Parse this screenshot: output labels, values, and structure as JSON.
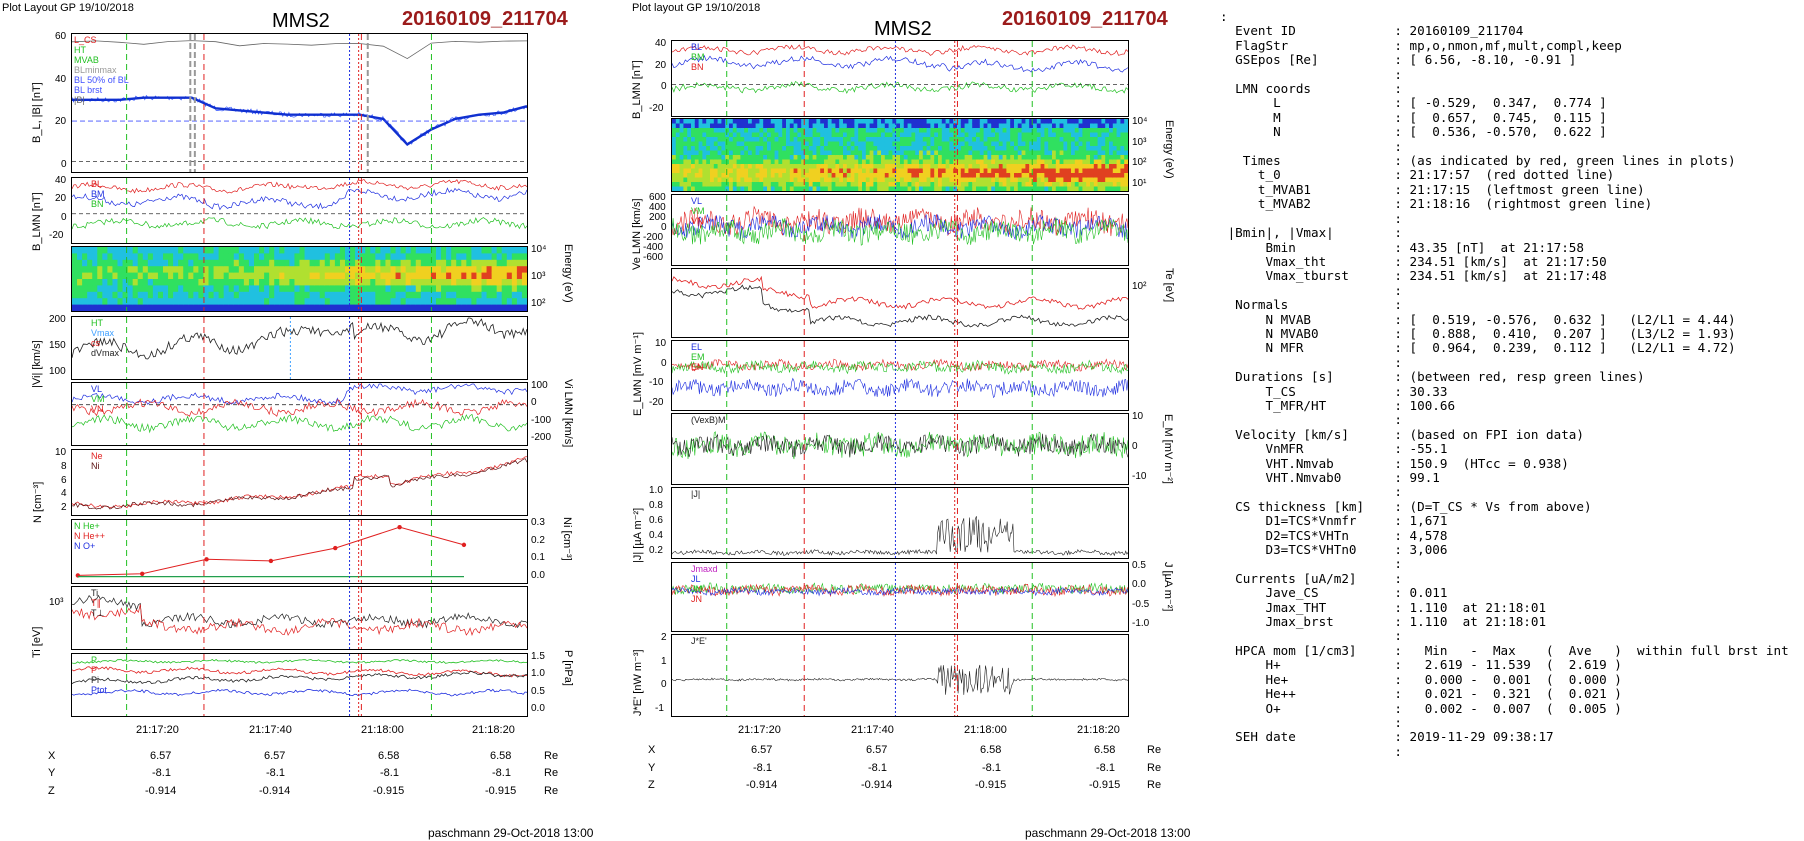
{
  "left": {
    "layout_label": "Plot Layout GP 19/10/2018",
    "spacecraft": "MMS2",
    "event_label": "20160109_211704",
    "footer": "paschmann 29-Oct-2018 13:00",
    "time_ticks": [
      "21:17:20",
      "21:17:40",
      "21:18:00",
      "21:18:20"
    ],
    "coords": {
      "X": [
        "6.57",
        "6.57",
        "6.58",
        "6.58"
      ],
      "Y": [
        "-8.1",
        "-8.1",
        "-8.1",
        "-8.1"
      ],
      "Z": [
        "-0.914",
        "-0.914",
        "-0.915",
        "-0.915"
      ],
      "unit": "Re"
    },
    "panels": {
      "b": {
        "ylabel": "B_L, |B| [nT]",
        "ticks": [
          "60",
          "40",
          "20",
          "0"
        ],
        "legend": [
          "L_CS",
          "HT",
          "MVAB",
          "BLminmax",
          "BL 50% of BL",
          "BL brst",
          "|B|"
        ]
      },
      "blmn": {
        "ylabel": "B_LMN [nT]",
        "ticks": [
          "40",
          "20",
          "0",
          "-20"
        ],
        "legend": [
          "BL",
          "BM",
          "BN"
        ]
      },
      "energy": {
        "ylabel": "Energy (eV)",
        "ticks": [
          "10⁴",
          "10³",
          "10²"
        ]
      },
      "vi": {
        "ylabel": "|Vi| [km/s]",
        "ticks": [
          "200",
          "150",
          "100"
        ],
        "legend": [
          "HT",
          "Vmax",
          "cs",
          "dVmax"
        ]
      },
      "vilmn": {
        "ylabel": "Vi LMN [km/s]",
        "ticks": [
          "100",
          "0",
          "-100",
          "-200"
        ],
        "legend": [
          "VL",
          "VM",
          "VN"
        ]
      },
      "n": {
        "ylabel": "N [cm⁻³]",
        "ticks": [
          "10",
          "8",
          "6",
          "4",
          "2"
        ],
        "legend": [
          "Ne",
          "Ni"
        ]
      },
      "ni": {
        "ylabel": "Ni [cm⁻³]",
        "ticks": [
          "0.3",
          "0.2",
          "0.1",
          "0.0"
        ],
        "legend": [
          "N He+",
          "N He++",
          "N O+"
        ]
      },
      "ti": {
        "ylabel": "Ti [eV]",
        "ticks": [
          "10³"
        ],
        "legend": [
          "Ti",
          "T∥",
          "T⊥"
        ]
      },
      "p": {
        "ylabel": "P [nPa]",
        "ticks": [
          "1.5",
          "1.0",
          "0.5",
          "0.0"
        ],
        "legend": [
          "P",
          "P",
          "Pi",
          "Ptot"
        ]
      }
    }
  },
  "middle": {
    "layout_label": "Plot layout GP 19/10/2018",
    "spacecraft": "MMS2",
    "event_label": "20160109_211704",
    "footer": "paschmann 29-Oct-2018 13:00",
    "time_ticks": [
      "21:17:20",
      "21:17:40",
      "21:18:00",
      "21:18:20"
    ],
    "coords": {
      "X": [
        "6.57",
        "6.57",
        "6.58",
        "6.58"
      ],
      "Y": [
        "-8.1",
        "-8.1",
        "-8.1",
        "-8.1"
      ],
      "Z": [
        "-0.914",
        "-0.914",
        "-0.915",
        "-0.915"
      ],
      "unit": "Re"
    },
    "panels": {
      "blmn": {
        "ylabel": "B_LMN [nT]",
        "ticks": [
          "40",
          "20",
          "0",
          "-20"
        ],
        "legend": [
          "BL",
          "BM",
          "BN"
        ]
      },
      "energy": {
        "ylabel": "Energy (eV)",
        "ticks": [
          "10⁴",
          "10³",
          "10²",
          "10¹"
        ]
      },
      "ve": {
        "ylabel": "Ve LMN [km/s]",
        "ticks": [
          "600",
          "400",
          "200",
          "0",
          "-200",
          "-400",
          "-600"
        ],
        "legend": [
          "VL",
          "VM",
          "VN"
        ]
      },
      "te": {
        "ylabel": "Te [eV]",
        "ticks": [
          "10²"
        ]
      },
      "e": {
        "ylabel": "E_LMN [mV m⁻¹]",
        "ticks": [
          "10",
          "0",
          "-10",
          "-20"
        ],
        "legend": [
          "EL",
          "EM",
          "EN"
        ]
      },
      "em": {
        "ylabel": "E_M [mV m⁻²]",
        "ticks": [
          "10",
          "0",
          "-10"
        ],
        "legend": [
          "(VexB)M"
        ]
      },
      "j": {
        "ylabel": "|J| [µA m⁻²]",
        "ticks": [
          "1.0",
          "0.8",
          "0.6",
          "0.4",
          "0.2"
        ],
        "legend": [
          "|J|"
        ]
      },
      "jlmn": {
        "ylabel": "J [µA m⁻²]",
        "ticks": [
          "0.5",
          "0.0",
          "-0.5",
          "-1.0"
        ],
        "legend": [
          "Jmaxd",
          "JL",
          "JM",
          "JN"
        ]
      },
      "je": {
        "ylabel": "J*E' [nW m⁻³]",
        "ticks": [
          "2",
          "1",
          "0",
          "-1"
        ],
        "legend": [
          "J*E'"
        ]
      }
    }
  },
  "info": [
    ":",
    "  Event ID             : 20160109_211704",
    "  FlagStr              : mp,o,nmon,mf,mult,compl,keep",
    "  GSEpos [Re]          : [ 6.56, -8.10, -0.91 ]",
    "                       :",
    "  LMN coords           :",
    "       L               : [ -0.529,  0.347,  0.774 ]",
    "       M               : [  0.657,  0.745,  0.115 ]",
    "       N               : [  0.536, -0.570,  0.622 ]",
    "                       :",
    "   Times               : (as indicated by red, green lines in plots)",
    "     t_0               : 21:17:57  (red dotted line)",
    "     t_MVAB1           : 21:17:15  (leftmost green line)",
    "     t_MVAB2           : 21:18:16  (rightmost green line)",
    "                       :",
    " |Bmin|, |Vmax|        :",
    "      Bmin             : 43.35 [nT]  at 21:17:58",
    "      Vmax_tht         : 234.51 [km/s]  at 21:17:50",
    "      Vmax_tburst      : 234.51 [km/s]  at 21:17:48",
    "                       :",
    "  Normals              :",
    "      N MVAB           : [  0.519, -0.576,  0.632 ]   (L2/L1 = 4.44)",
    "      N MVAB0          : [  0.888,  0.410,  0.207 ]   (L3/L2 = 1.93)",
    "      N MFR            : [  0.964,  0.239,  0.112 ]   (L2/L1 = 4.72)",
    "                       :",
    "  Durations [s]        : (between red, resp green lines)",
    "      T_CS             : 30.33",
    "      T_MFR/HT         : 100.66",
    "                       :",
    "  Velocity [km/s]      : (based on FPI ion data)",
    "      VnMFR            : -55.1",
    "      VHT.Nmvab        : 150.9  (HTcc = 0.938)",
    "      VHT.Nmvab0       : 99.1",
    "                       :",
    "  CS thickness [km]    : (D=T_CS * Vs from above)",
    "      D1=TCS*Vnmfr     : 1,671",
    "      D2=TCS*VHTn      : 4,578",
    "      D3=TCS*VHTn0     : 3,006",
    "                       :",
    "  Currents [uA/m2]     :",
    "      Jave_CS          : 0.011",
    "      Jmax_THT         : 1.110  at 21:18:01",
    "      Jmax_brst        : 1.110  at 21:18:01",
    "                       :",
    "  HPCA mom [1/cm3]     :   Min   -  Max    (  Ave   )  within full brst int",
    "      H+               :   2.619 - 11.539  (  2.619 )",
    "      He+              :   0.000 -  0.001  (  0.000 )",
    "      He++             :   0.021 -  0.321  (  0.021 )",
    "      O+               :   0.002 -  0.007  (  0.005 )",
    "                       :",
    "  SEH date             : 2019-11-29 09:38:17",
    "                       :"
  ],
  "chart_data": [
    {
      "type": "line",
      "title": "MMS2 20160109_211704",
      "xlabel": "",
      "x_ticks": [
        "21:17:20",
        "21:17:40",
        "21:18:00",
        "21:18:20"
      ],
      "panels": [
        "B_L, |B| [nT]",
        "B_LMN [nT]",
        "Energy (eV)",
        "|Vi| [km/s]",
        "Vi LMN [km/s]",
        "N [cm⁻³]",
        "Ni [cm⁻³]",
        "Ti [eV]",
        "P [nPa]"
      ],
      "ylim_b": [
        -5,
        60
      ],
      "series": [
        {
          "name": "|B|",
          "values": [
            56,
            57,
            56,
            55,
            56,
            57,
            56,
            55,
            56,
            55,
            55,
            56,
            55,
            54,
            49,
            55,
            56,
            56,
            56,
            57
          ]
        },
        {
          "name": "BL brst",
          "values": [
            29,
            29,
            29,
            30,
            30,
            30,
            25,
            24,
            23,
            22,
            22,
            22,
            22,
            20,
            8,
            15,
            20,
            22,
            23,
            26
          ]
        }
      ],
      "ni": {
        "name": "N He++",
        "values": [
          0.01,
          0.02,
          0.11,
          0.1,
          0.18,
          0.31,
          0.2
        ]
      }
    },
    {
      "type": "line",
      "title": "MMS2 20160109_211704",
      "xlabel": "",
      "x_ticks": [
        "21:17:20",
        "21:17:40",
        "21:18:00",
        "21:18:20"
      ],
      "panels": [
        "B_LMN [nT]",
        "Energy (eV)",
        "Ve LMN [km/s]",
        "Te [eV]",
        "E_LMN [mV m⁻¹]",
        "E_M [mV m⁻²]",
        "|J| [µA m⁻²]",
        "J [µA m⁻²]",
        "J*E' [nW m⁻³]"
      ]
    }
  ],
  "colors": {
    "event": "#9b1b1b",
    "red": "#e02020",
    "green": "#22c022",
    "blue": "#2030e0",
    "black": "#000000"
  }
}
